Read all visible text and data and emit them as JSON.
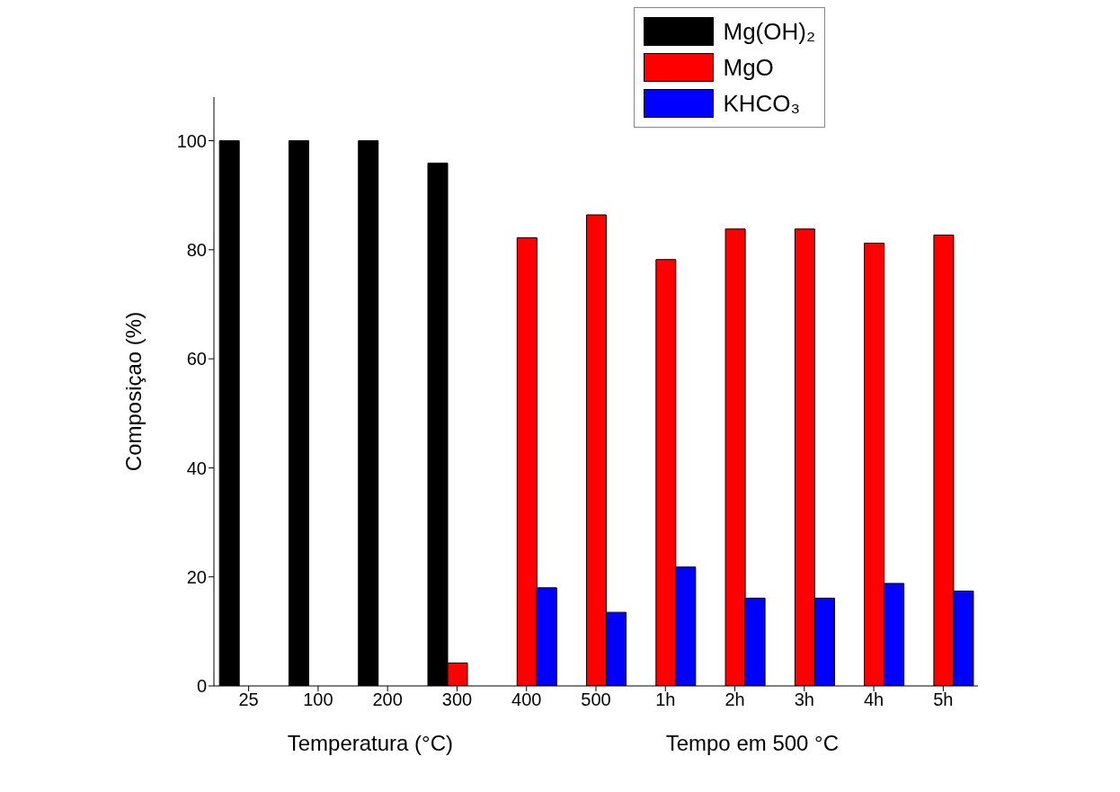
{
  "chart_data": {
    "type": "bar",
    "ylabel": "Composiçao (%)",
    "xlabel": "Temperatura (°C)",
    "annotations": [
      "Tempo em 500 °C"
    ],
    "categories": [
      "25",
      "100",
      "200",
      "300",
      "400",
      "500",
      "1h",
      "2h",
      "3h",
      "4h",
      "5h"
    ],
    "series": [
      {
        "name": "Mg(OH)₂",
        "color": "#000000",
        "values": [
          100,
          100,
          100,
          95.9,
          null,
          null,
          null,
          null,
          null,
          null,
          null
        ]
      },
      {
        "name": "MgO",
        "color": "#ff0000",
        "values": [
          null,
          null,
          null,
          4.2,
          82.2,
          86.4,
          78.2,
          83.8,
          83.8,
          81.2,
          82.7
        ]
      },
      {
        "name": "KHCO₃",
        "color": "#0000ff",
        "values": [
          null,
          null,
          null,
          null,
          18.0,
          13.5,
          21.8,
          16.1,
          16.1,
          18.8,
          17.4
        ]
      }
    ],
    "ylim": [
      0,
      108
    ],
    "yticks": [
      0,
      20,
      40,
      60,
      80,
      100
    ],
    "grid": false,
    "legend": "top right"
  }
}
